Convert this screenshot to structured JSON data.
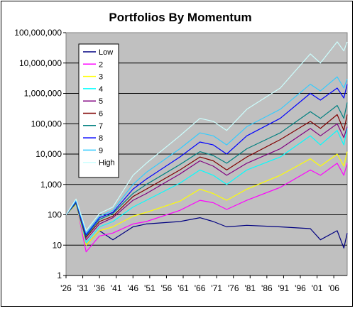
{
  "chart_data": {
    "type": "line",
    "title": "Portfolios By Momentum",
    "xlabel": "",
    "ylabel": "",
    "y_scale": "log",
    "ylim": [
      1,
      100000000
    ],
    "xlim": [
      1926,
      2010
    ],
    "grid": "horizontal",
    "plot_background": "#c0c0c0",
    "legend_position": "top-left",
    "y_tick_labels": [
      "1",
      "10",
      "100",
      "1,000",
      "10,000",
      "100,000",
      "1,000,000",
      "10,000,000",
      "100,000,000"
    ],
    "x_tick_labels": [
      "'26",
      "'31",
      "'36",
      "'41",
      "'46",
      "'51",
      "'56",
      "'61",
      "'66",
      "'71",
      "'76",
      "'81",
      "'86",
      "'91",
      "'96",
      "'01",
      "'06"
    ],
    "x_tick_years": [
      1926,
      1931,
      1936,
      1941,
      1946,
      1951,
      1956,
      1961,
      1966,
      1971,
      1976,
      1981,
      1986,
      1991,
      1996,
      2001,
      2006
    ],
    "x_sample_years": [
      1926,
      1929,
      1932,
      1936,
      1940,
      1946,
      1950,
      1960,
      1966,
      1970,
      1974,
      1980,
      1990,
      1999,
      2002,
      2007,
      2009,
      2010
    ],
    "series": [
      {
        "name": "Low",
        "color": "#000080",
        "values": [
          100,
          300,
          10,
          30,
          15,
          40,
          50,
          60,
          80,
          60,
          40,
          45,
          40,
          35,
          15,
          30,
          8,
          25
        ]
      },
      {
        "name": "2",
        "color": "#ff00ff",
        "values": [
          100,
          250,
          6,
          20,
          25,
          50,
          60,
          140,
          300,
          250,
          150,
          300,
          800,
          3000,
          2000,
          5000,
          2000,
          5000
        ]
      },
      {
        "name": "3",
        "color": "#ffff00",
        "values": [
          100,
          220,
          10,
          30,
          40,
          90,
          120,
          280,
          700,
          500,
          300,
          700,
          2000,
          7000,
          4000,
          10000,
          4000,
          12000
        ]
      },
      {
        "name": "4",
        "color": "#00ffff",
        "values": [
          100,
          230,
          12,
          40,
          60,
          180,
          300,
          1100,
          3000,
          2000,
          1000,
          3000,
          8000,
          40000,
          20000,
          60000,
          20000,
          70000
        ]
      },
      {
        "name": "5",
        "color": "#800080",
        "values": [
          100,
          240,
          15,
          50,
          80,
          300,
          500,
          2200,
          6000,
          4000,
          2000,
          5000,
          15000,
          70000,
          40000,
          100000,
          35000,
          80000
        ]
      },
      {
        "name": "6",
        "color": "#800000",
        "values": [
          100,
          250,
          18,
          60,
          90,
          400,
          700,
          3000,
          8000,
          6000,
          3000,
          8000,
          30000,
          120000,
          70000,
          200000,
          60000,
          200000
        ]
      },
      {
        "name": "7",
        "color": "#008080",
        "values": [
          100,
          260,
          20,
          70,
          110,
          500,
          1000,
          4500,
          12000,
          9000,
          5000,
          15000,
          50000,
          250000,
          150000,
          400000,
          150000,
          500000
        ]
      },
      {
        "name": "8",
        "color": "#0000ff",
        "values": [
          100,
          280,
          22,
          80,
          120,
          700,
          1500,
          8000,
          25000,
          20000,
          10000,
          40000,
          150000,
          1000000,
          600000,
          1500000,
          700000,
          2000000
        ]
      },
      {
        "name": "9",
        "color": "#33ccff",
        "values": [
          100,
          300,
          25,
          90,
          140,
          1000,
          2500,
          15000,
          50000,
          40000,
          20000,
          80000,
          300000,
          2000000,
          1200000,
          3500000,
          1500000,
          3000000
        ]
      },
      {
        "name": "High",
        "color": "#ccffff",
        "values": [
          100,
          330,
          30,
          110,
          180,
          2000,
          5000,
          40000,
          150000,
          120000,
          60000,
          300000,
          1500000,
          20000000,
          10000000,
          50000000,
          25000000,
          50000000
        ]
      }
    ]
  }
}
